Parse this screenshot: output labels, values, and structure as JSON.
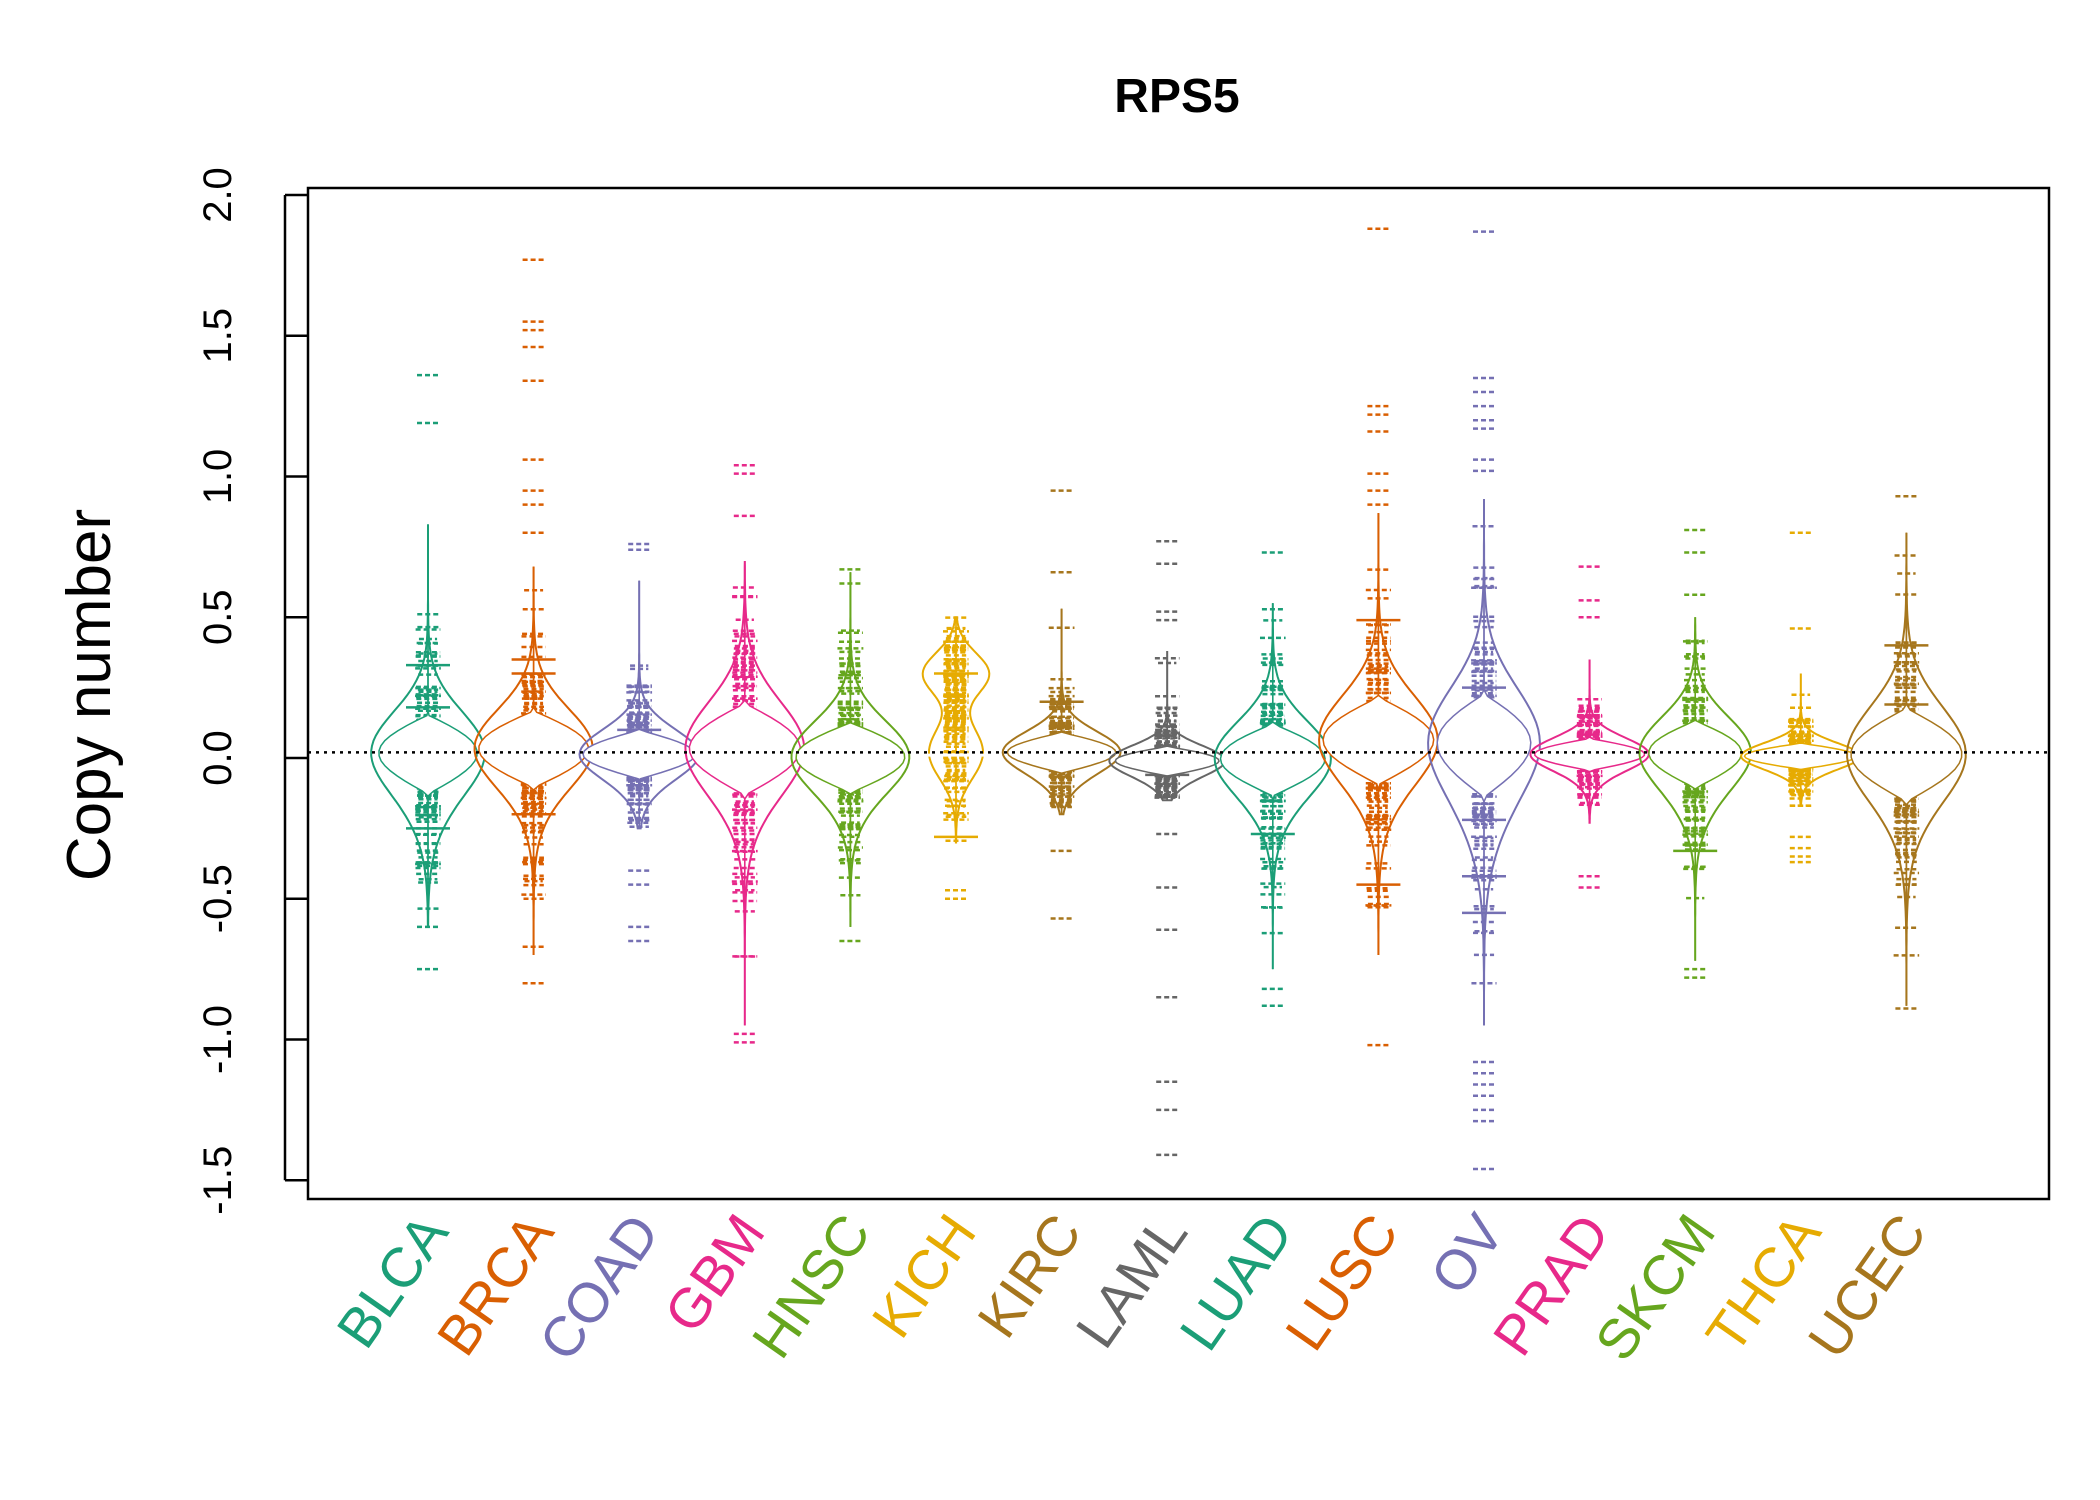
{
  "chart_data": {
    "type": "beanplot",
    "title": "RPS5",
    "xlabel": "",
    "ylabel": "Copy number",
    "ylim": [
      -1.6,
      2.05
    ],
    "yticks": [
      -1.5,
      -1.0,
      -0.5,
      0.0,
      0.5,
      1.0,
      1.5,
      2.0
    ],
    "ytick_labels": [
      "-1.5",
      "-1.0",
      "-0.5",
      "0.0",
      "0.5",
      "1.0",
      "1.5",
      "2.0"
    ],
    "reference_line": 0.02,
    "grid": false,
    "legend": "none",
    "series": [
      {
        "name": "BLCA",
        "color": "#1B9E77",
        "median": 0.03,
        "density_center": [
          0.05,
          -0.05
        ],
        "body_range": [
          -0.6,
          0.83
        ],
        "extremes": [
          1.36,
          1.19,
          -0.75,
          -0.6
        ],
        "quantile_marks": [
          0.18,
          -0.25,
          0.33
        ]
      },
      {
        "name": "BRCA",
        "color": "#D95F02",
        "median": 0.03,
        "density_center": [
          0.05,
          0.0
        ],
        "body_range": [
          -0.7,
          0.68
        ],
        "extremes": [
          1.77,
          1.55,
          1.52,
          1.46,
          1.34,
          1.06,
          0.95,
          0.9,
          0.8,
          -0.8
        ],
        "quantile_marks": [
          0.3,
          -0.01,
          -0.2,
          0.35
        ]
      },
      {
        "name": "COAD",
        "color": "#7570B3",
        "median": 0.01,
        "density_center": [
          0.02,
          0.0
        ],
        "body_range": [
          -0.25,
          0.63
        ],
        "extremes": [
          0.76,
          0.74,
          -0.4,
          -0.45,
          -0.6,
          -0.65
        ],
        "quantile_marks": [
          0.1,
          -0.05
        ]
      },
      {
        "name": "GBM",
        "color": "#E7298A",
        "median": 0.03,
        "density_center": [
          0.05,
          0.0
        ],
        "body_range": [
          -0.95,
          0.7
        ],
        "extremes": [
          1.04,
          1.01,
          0.86,
          -0.98,
          -1.01
        ],
        "quantile_marks": [
          0.1,
          -0.02
        ]
      },
      {
        "name": "HNSC",
        "color": "#66A61E",
        "median": 0.01,
        "density_center": [
          0.02,
          -0.03
        ],
        "body_range": [
          -0.6,
          0.66
        ],
        "extremes": [
          0.67,
          0.62,
          -0.65
        ],
        "quantile_marks": [
          -0.05,
          0.01
        ]
      },
      {
        "name": "KICH",
        "color": "#E6AB02",
        "median": 0.01,
        "density_center": [
          0.3,
          0.02
        ],
        "body_range": [
          -0.3,
          0.5
        ],
        "extremes": [
          -0.47,
          -0.5
        ],
        "quantile_marks": [
          0.3,
          -0.28
        ]
      },
      {
        "name": "KIRC",
        "color": "#A6761D",
        "median": 0.02,
        "density_center": [
          0.03,
          0.0
        ],
        "body_range": [
          -0.2,
          0.53
        ],
        "extremes": [
          0.95,
          0.66,
          -0.33,
          -0.57
        ],
        "quantile_marks": [
          0.2,
          0.02
        ]
      },
      {
        "name": "LAML",
        "color": "#666666",
        "median": -0.02,
        "density_center": [
          0.0,
          -0.03
        ],
        "body_range": [
          -0.15,
          0.38
        ],
        "extremes": [
          0.77,
          0.69,
          0.52,
          0.49,
          -0.27,
          -0.46,
          -0.61,
          -0.85,
          -1.15,
          -1.25,
          -1.41
        ],
        "quantile_marks": [
          0.01,
          -0.06
        ]
      },
      {
        "name": "LUAD",
        "color": "#1B9E77",
        "median": 0.0,
        "density_center": [
          0.02,
          -0.05
        ],
        "body_range": [
          -0.75,
          0.55
        ],
        "extremes": [
          0.73,
          -0.82,
          -0.88
        ],
        "quantile_marks": [
          -0.27,
          0.0
        ]
      },
      {
        "name": "LUSC",
        "color": "#D95F02",
        "median": 0.05,
        "density_center": [
          0.08,
          0.03
        ],
        "body_range": [
          -0.7,
          0.87
        ],
        "extremes": [
          1.88,
          1.25,
          1.22,
          1.16,
          1.01,
          0.95,
          0.9,
          -1.02
        ],
        "quantile_marks": [
          0.49,
          0.07,
          -0.45
        ]
      },
      {
        "name": "OV",
        "color": "#7570B3",
        "median": 0.02,
        "density_center": [
          0.1,
          -0.05
        ],
        "body_range": [
          -0.95,
          0.92
        ],
        "extremes": [
          1.87,
          1.35,
          1.3,
          1.25,
          1.2,
          1.17,
          1.06,
          1.02,
          -1.08,
          -1.12,
          -1.16,
          -1.2,
          -1.25,
          -1.29,
          -1.46
        ],
        "quantile_marks": [
          0.25,
          -0.22,
          -0.42,
          -0.55
        ]
      },
      {
        "name": "PRAD",
        "color": "#E7298A",
        "median": 0.02,
        "density_center": [
          0.02,
          0.0
        ],
        "body_range": [
          -0.23,
          0.35
        ],
        "extremes": [
          0.68,
          0.56,
          0.5,
          -0.42,
          -0.46
        ],
        "quantile_marks": [
          0.05,
          -0.01
        ]
      },
      {
        "name": "SKCM",
        "color": "#66A61E",
        "median": 0.03,
        "density_center": [
          0.05,
          -0.05
        ],
        "body_range": [
          -0.72,
          0.5
        ],
        "extremes": [
          0.81,
          0.73,
          0.58,
          -0.75,
          -0.78
        ],
        "quantile_marks": [
          0.06,
          -0.33
        ]
      },
      {
        "name": "THCA",
        "color": "#E6AB02",
        "median": 0.01,
        "density_center": [
          0.01,
          0.0
        ],
        "body_range": [
          -0.17,
          0.3
        ],
        "extremes": [
          0.8,
          0.46,
          -0.28,
          -0.32,
          -0.35,
          -0.37
        ],
        "quantile_marks": [
          0.02,
          -0.01
        ]
      },
      {
        "name": "UCEC",
        "color": "#A6761D",
        "median": 0.02,
        "density_center": [
          0.03,
          -0.02
        ],
        "body_range": [
          -0.88,
          0.8
        ],
        "extremes": [
          0.93,
          -0.89
        ],
        "quantile_marks": [
          0.19,
          0.4
        ]
      }
    ]
  }
}
